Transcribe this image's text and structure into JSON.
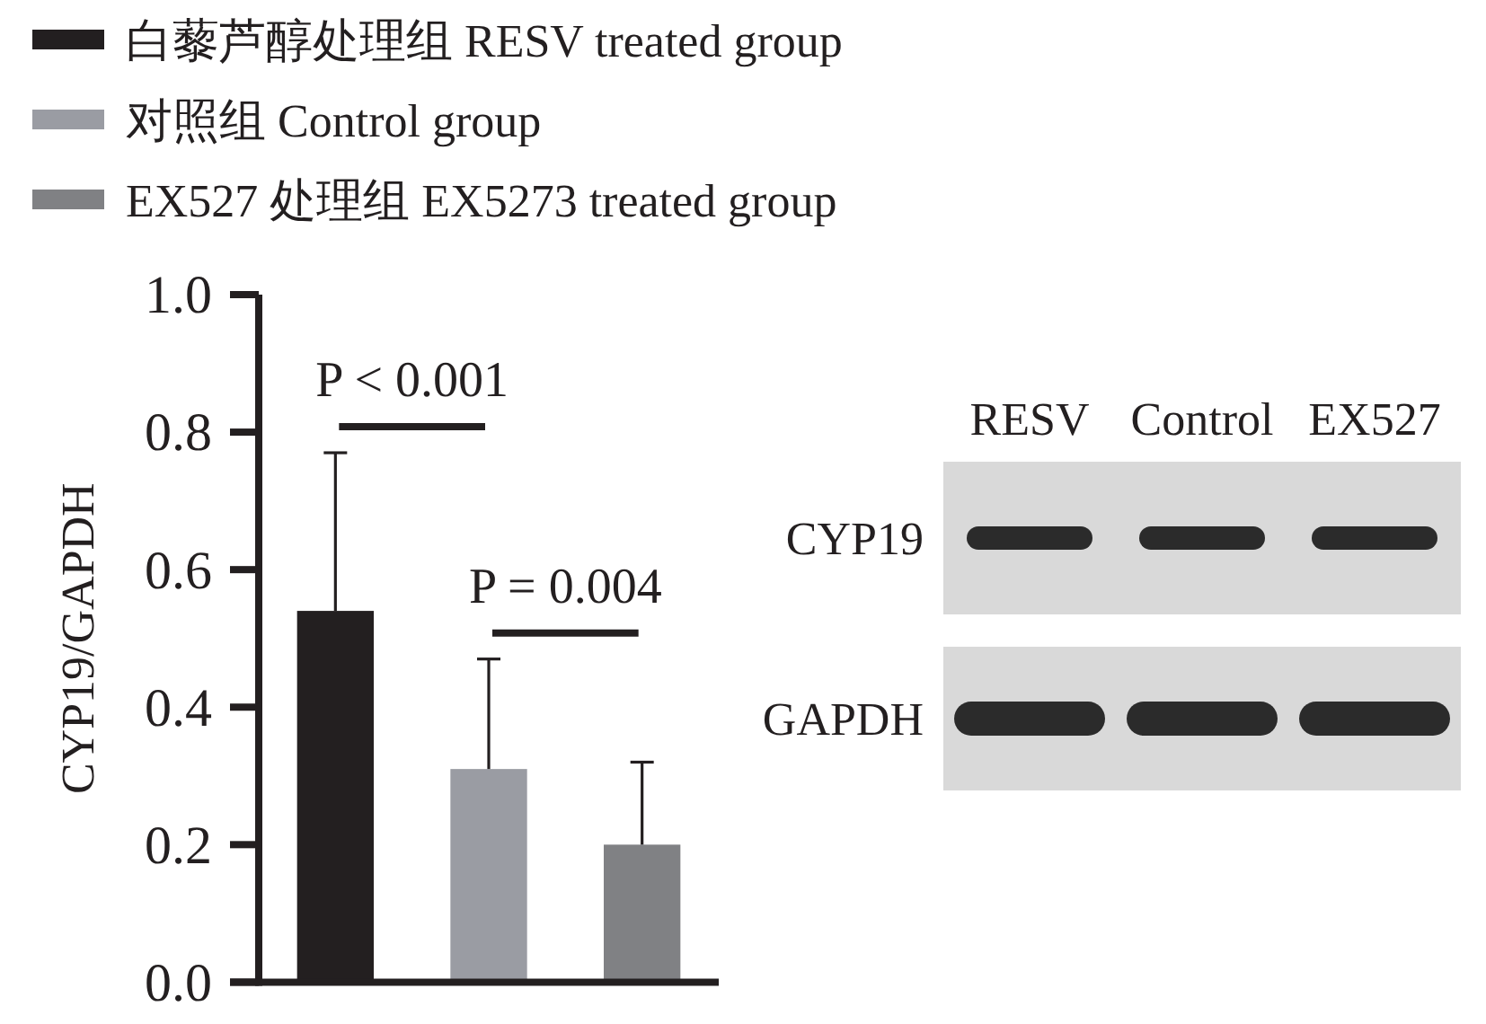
{
  "chart_data": [
    {
      "type": "bar",
      "categories": [
        null,
        null,
        null
      ],
      "series": [
        {
          "name": "白藜芦醇处理组 RESV treated group",
          "color": "#231f20",
          "values": [
            0.54,
            null,
            null
          ],
          "errors": [
            [
              0.54,
              0.77
            ],
            null,
            null
          ]
        },
        {
          "name": "对照组 Control group",
          "color": "#9a9ca3",
          "values": [
            null,
            0.31,
            null
          ],
          "errors": [
            null,
            [
              0.31,
              0.47
            ],
            null
          ]
        },
        {
          "name": "EX527 处理组 EX5273 treated group",
          "color": "#808184",
          "values": [
            null,
            null,
            0.2
          ],
          "errors": [
            null,
            null,
            [
              0.2,
              0.32
            ]
          ]
        }
      ],
      "ylabel": "CYP19/GAPDH",
      "ylim": [
        0,
        1
      ],
      "yticks": [
        {
          "value": 0,
          "label": "0.0"
        },
        {
          "value": 0.2,
          "label": "0.2"
        },
        {
          "value": 0.4,
          "label": "0.4"
        },
        {
          "value": 0.6,
          "label": "0.6"
        },
        {
          "value": 0.8,
          "label": "0.8"
        },
        {
          "value": 1,
          "label": "1.0"
        }
      ],
      "annotations": [
        "P < 0.001",
        "P = 0.004"
      ],
      "legend": "top left",
      "tick_labels": "y"
    },
    {
      "type": "other",
      "categories": [
        "RESV",
        "Control",
        "EX527"
      ],
      "y_categories": [
        "CYP19",
        "GAPDH"
      ]
    }
  ]
}
